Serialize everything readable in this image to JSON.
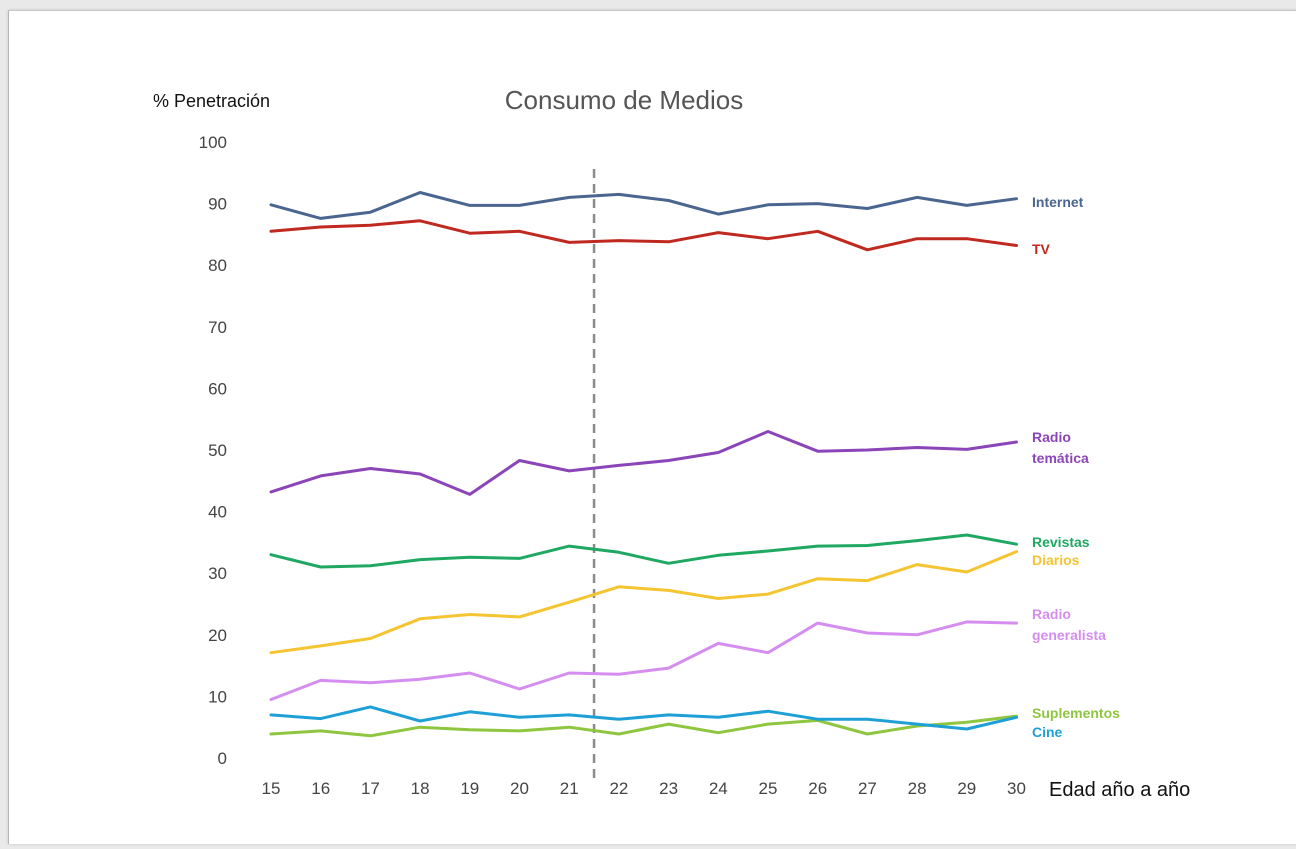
{
  "chart_data": {
    "type": "line",
    "title": "Consumo de Medios",
    "ylabel": "% Penetración",
    "xlabel": "Edad año a año",
    "x": [
      15,
      16,
      17,
      18,
      19,
      20,
      21,
      22,
      23,
      24,
      25,
      26,
      27,
      28,
      29,
      30
    ],
    "ylim": [
      0,
      100
    ],
    "yticks": [
      0,
      10,
      20,
      30,
      40,
      50,
      60,
      70,
      80,
      90,
      100
    ],
    "grid": false,
    "legend": "labels at line ends (right)",
    "reference_line": {
      "x": 21.5,
      "style": "dashed"
    },
    "series": [
      {
        "name": "Internet",
        "color": "#4a6690",
        "values": [
          89.8,
          87.6,
          88.6,
          91.8,
          89.7,
          89.7,
          91.0,
          91.5,
          90.5,
          88.3,
          89.8,
          90.0,
          89.2,
          91.0,
          89.7,
          90.8
        ]
      },
      {
        "name": "TV",
        "color": "#c0291f",
        "values": [
          85.5,
          86.2,
          86.5,
          87.2,
          85.2,
          85.5,
          83.7,
          84.0,
          83.8,
          85.3,
          84.3,
          85.5,
          82.5,
          84.3,
          84.3,
          83.2
        ]
      },
      {
        "name": "Radio temática",
        "color": "#8b45b8",
        "values": [
          43.2,
          45.8,
          47.0,
          46.1,
          42.8,
          48.3,
          46.6,
          47.5,
          48.3,
          49.6,
          53.0,
          49.8,
          50.0,
          50.4,
          50.1,
          51.3
        ]
      },
      {
        "name": "Revistas",
        "color": "#1fa862",
        "values": [
          33.0,
          31.0,
          31.2,
          32.2,
          32.6,
          32.4,
          34.4,
          33.4,
          31.6,
          32.9,
          33.6,
          34.4,
          34.5,
          35.3,
          36.2,
          34.7
        ]
      },
      {
        "name": "Diarios",
        "color": "#f4c431",
        "values": [
          17.1,
          18.2,
          19.4,
          22.6,
          23.3,
          22.9,
          25.3,
          27.8,
          27.2,
          25.9,
          26.6,
          29.1,
          28.8,
          31.4,
          30.2,
          33.5
        ]
      },
      {
        "name": "Radio generalista",
        "color": "#d58ef0",
        "values": [
          9.5,
          12.6,
          12.2,
          12.8,
          13.8,
          11.2,
          13.8,
          13.6,
          14.6,
          18.6,
          17.1,
          21.9,
          20.3,
          20.0,
          22.1,
          21.9
        ]
      },
      {
        "name": "Suplementos",
        "color": "#8ec63f",
        "values": [
          3.9,
          4.4,
          3.6,
          5.0,
          4.6,
          4.4,
          5.0,
          3.9,
          5.5,
          4.1,
          5.5,
          6.1,
          3.9,
          5.2,
          5.8,
          6.8
        ]
      },
      {
        "name": "Cine",
        "color": "#1ea0d6",
        "values": [
          7.0,
          6.4,
          8.3,
          6.0,
          7.5,
          6.6,
          7.0,
          6.3,
          7.0,
          6.6,
          7.6,
          6.3,
          6.3,
          5.5,
          4.7,
          6.6
        ]
      }
    ]
  }
}
